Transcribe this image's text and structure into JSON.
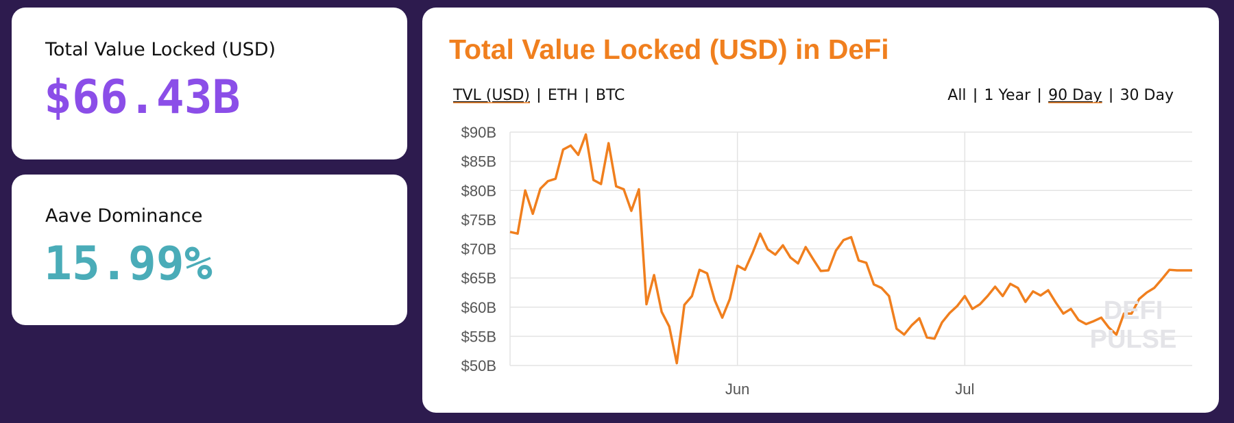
{
  "cards": [
    {
      "label": "Total Value Locked (USD)",
      "value": "$66.43B"
    },
    {
      "label": "Aave Dominance",
      "value": "15.99%"
    }
  ],
  "controls": {
    "metrics": [
      "TVL (USD)",
      "ETH",
      "BTC"
    ],
    "active_metric": 0,
    "ranges": [
      "All",
      "1 Year",
      "90 Day",
      "30 Day"
    ],
    "active_range": 2
  },
  "watermark": [
    "DEFI",
    "PULSE"
  ],
  "chart_data": {
    "type": "line",
    "title": "Total Value Locked (USD) in DeFi",
    "color": "#f07f1e",
    "grid": true,
    "x": [
      0,
      1,
      2,
      3,
      4,
      5,
      6,
      7,
      8,
      9,
      10,
      11,
      12,
      13,
      14,
      15,
      16,
      17,
      18,
      19,
      20,
      21,
      22,
      23,
      24,
      25,
      26,
      27,
      28,
      29,
      30,
      31,
      32,
      33,
      34,
      35,
      36,
      37,
      38,
      39,
      40,
      41,
      42,
      43,
      44,
      45,
      46,
      47,
      48,
      49,
      50,
      51,
      52,
      53,
      54,
      55,
      56,
      57,
      58,
      59,
      60,
      61,
      62,
      63,
      64,
      65,
      66,
      67,
      68,
      69,
      70,
      71,
      72,
      73,
      74,
      75,
      76,
      77,
      78,
      79,
      80,
      81,
      82,
      83,
      84,
      85,
      86,
      87,
      88,
      89,
      90
    ],
    "values": [
      72.9,
      72.6,
      80.0,
      76,
      80.3,
      81.6,
      82,
      87,
      87.7,
      86.1,
      89.6,
      81.8,
      81.1,
      88.1,
      80.7,
      80.2,
      76.5,
      80.2,
      60.5,
      65.5,
      59.2,
      56.7,
      50.4,
      60.4,
      61.9,
      66.4,
      65.8,
      61.2,
      58.2,
      61.4,
      67.1,
      66.4,
      69.3,
      72.6,
      69.9,
      69,
      70.6,
      68.5,
      67.5,
      70.3,
      68.2,
      66.2,
      66.3,
      69.7,
      71.5,
      72,
      68,
      67.6,
      63.9,
      63.3,
      61.9,
      56.3,
      55.3,
      56.9,
      58.1,
      54.8,
      54.6,
      57.4,
      59,
      60.2,
      61.9,
      59.7,
      60.5,
      61.9,
      63.5,
      61.9,
      64,
      63.3,
      60.9,
      62.7,
      62,
      62.9,
      60.8,
      58.9,
      59.7,
      57.8,
      57.1,
      57.6,
      58.2,
      56.5,
      55.3,
      58.9,
      58.9,
      61.4,
      62.5,
      63.3,
      64.8,
      66.4,
      66.3,
      66.3,
      66.3
    ],
    "xlim": [
      0,
      90
    ],
    "xticks": [
      {
        "value": 30,
        "label": "Jun"
      },
      {
        "value": 60,
        "label": "Jul"
      }
    ],
    "ylim": [
      50,
      90
    ],
    "yticks": [
      {
        "value": 90,
        "label": "$90B"
      },
      {
        "value": 85,
        "label": "$85B"
      },
      {
        "value": 80,
        "label": "$80B"
      },
      {
        "value": 75,
        "label": "$75B"
      },
      {
        "value": 70,
        "label": "$70B"
      },
      {
        "value": 65,
        "label": "$65B"
      },
      {
        "value": 60,
        "label": "$60B"
      },
      {
        "value": 55,
        "label": "$55B"
      },
      {
        "value": 50,
        "label": "$50B"
      }
    ]
  }
}
